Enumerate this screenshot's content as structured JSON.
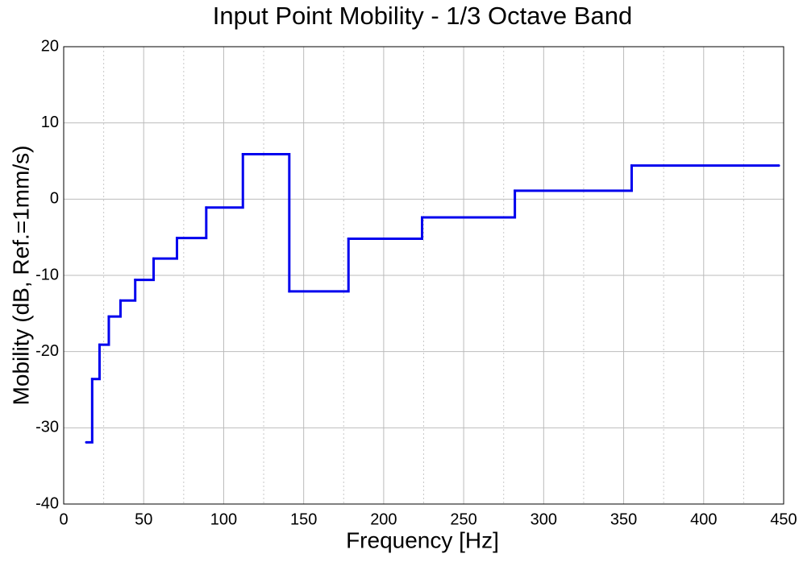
{
  "chart_data": {
    "type": "step",
    "title": "Input Point Mobility - 1/3 Octave Band",
    "xlabel": "Frequency [Hz]",
    "ylabel": "Mobility (dB, Ref.=1mm/s)",
    "x": [
      14.1,
      17.8,
      22.4,
      28.2,
      35.5,
      44.7,
      56.2,
      70.8,
      89.1,
      112,
      141,
      178,
      224,
      282,
      355,
      447
    ],
    "series": [
      {
        "name": "Mobility",
        "color": "#0000ee",
        "values": [
          -31.9,
          -23.6,
          -19.1,
          -15.4,
          -13.3,
          -10.6,
          -7.8,
          -5.1,
          -1.1,
          5.9,
          -12.1,
          -5.2,
          -2.4,
          1.1,
          4.4,
          4.4
        ]
      }
    ],
    "xlim": [
      0,
      450
    ],
    "xticks": [
      0,
      50,
      100,
      150,
      200,
      250,
      300,
      350,
      400,
      450
    ],
    "xminorticks": [
      25,
      75,
      125,
      175,
      225,
      275,
      325,
      375,
      425
    ],
    "ylim": [
      -40,
      20
    ],
    "yticks": [
      -40,
      -30,
      -20,
      -10,
      0,
      10,
      20
    ],
    "grid": true
  }
}
